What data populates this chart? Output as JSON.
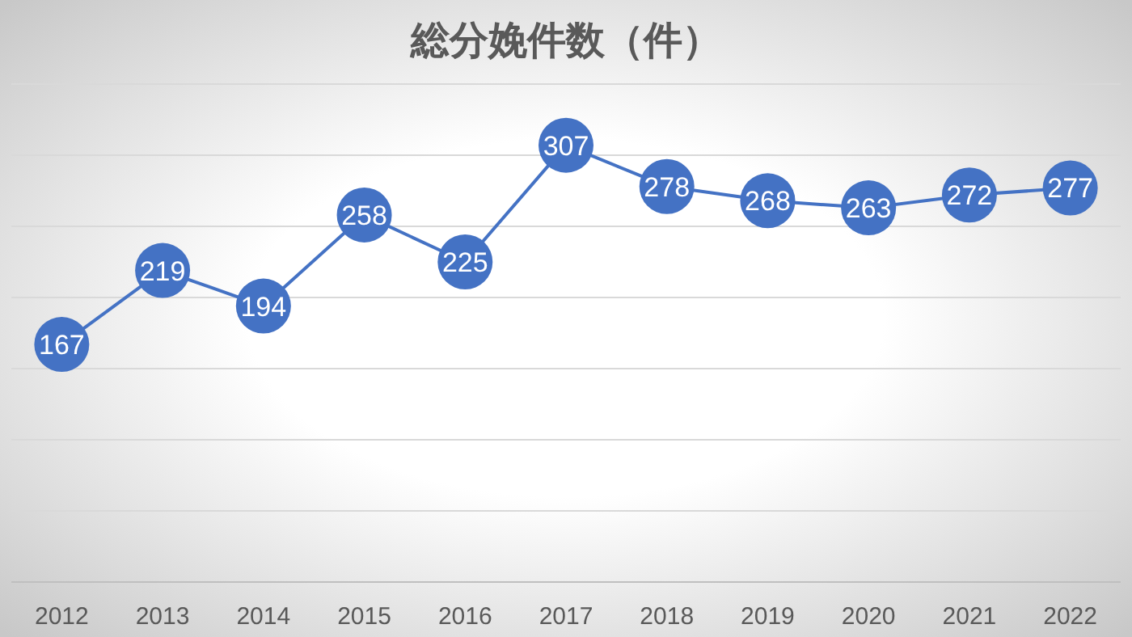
{
  "chart_data": {
    "type": "line",
    "title": "総分娩件数（件）",
    "categories": [
      "2012",
      "2013",
      "2014",
      "2015",
      "2016",
      "2017",
      "2018",
      "2019",
      "2020",
      "2021",
      "2022"
    ],
    "values": [
      167,
      219,
      194,
      258,
      225,
      307,
      278,
      268,
      263,
      272,
      277
    ],
    "color": "#4472c4",
    "marker": "circle",
    "data_labels": true,
    "ylim": [
      0,
      350
    ],
    "yticks": [
      {
        "value": 0,
        "label": null
      },
      {
        "value": 50,
        "label": null
      },
      {
        "value": 100,
        "label": null
      },
      {
        "value": 150,
        "label": null
      },
      {
        "value": 200,
        "label": null
      },
      {
        "value": 250,
        "label": null
      },
      {
        "value": 300,
        "label": null
      },
      {
        "value": 350,
        "label": null
      }
    ],
    "grid": "y",
    "tick_labels": "x"
  }
}
